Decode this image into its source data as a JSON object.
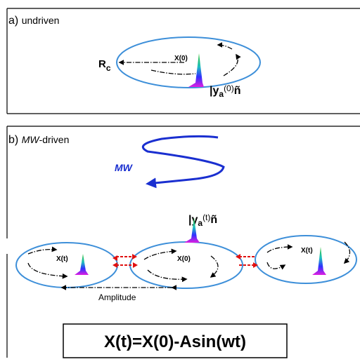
{
  "panel_a": {
    "label": "a)",
    "title": "undriven",
    "radius_label": "R",
    "radius_subscript": "c",
    "center_label": "X(0)",
    "state": {
      "bar": "|y",
      "sub": "a",
      "arg": "(0)",
      "close": "ñ"
    }
  },
  "panel_b": {
    "label": "b)",
    "title_italic": "MW",
    "title_rest": "-driven",
    "drive_label": "MW",
    "state": {
      "bar": "|y",
      "sub": "a",
      "arg": "(t)",
      "close": "ñ"
    },
    "orbits": [
      {
        "label": "X(t)"
      },
      {
        "label": "X(0)"
      },
      {
        "label": "X(t)"
      }
    ],
    "amplitude_label": "Amplitude",
    "equation": "X(t)=X(0)-Asin(wt)"
  }
}
